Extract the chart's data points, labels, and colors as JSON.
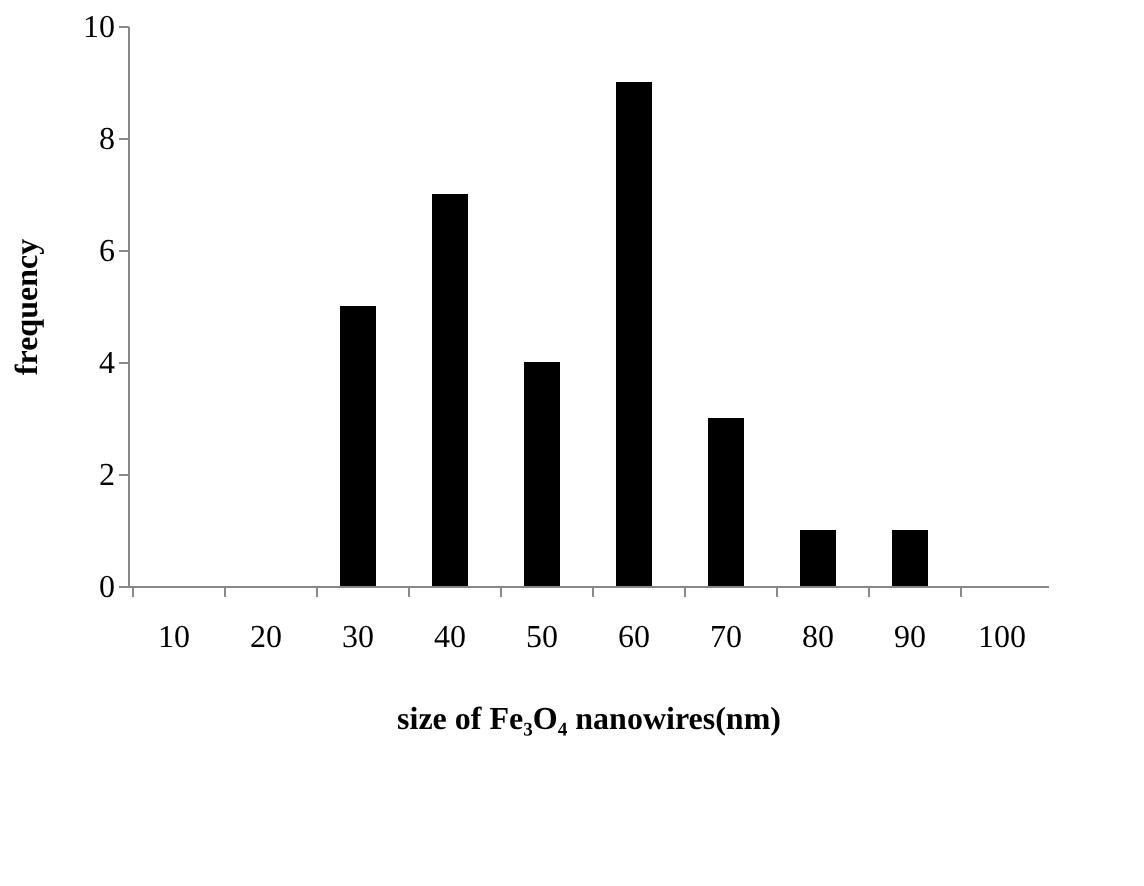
{
  "chart_data": {
    "type": "bar",
    "xlabel": "size of  Fe₃O₄ nanowires(nm)",
    "ylabel": "frequency",
    "categories": [
      "10",
      "20",
      "30",
      "40",
      "50",
      "60",
      "70",
      "80",
      "90",
      "100"
    ],
    "values": [
      0,
      0,
      5,
      7,
      4,
      9,
      3,
      1,
      1,
      0
    ],
    "color": "#000000",
    "ylim": [
      0,
      10
    ],
    "yticks": [
      0,
      2,
      4,
      6,
      8,
      10
    ],
    "grid": false
  }
}
